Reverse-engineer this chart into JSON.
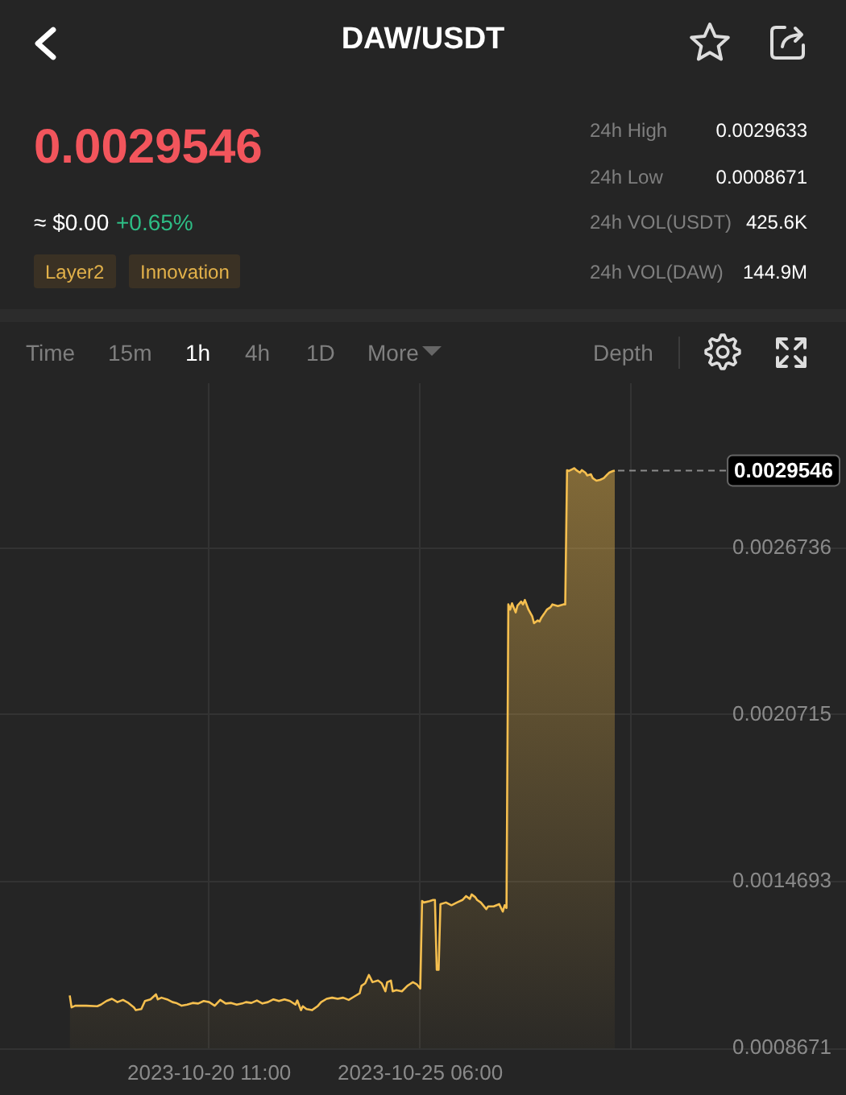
{
  "chart_data": {
    "type": "area",
    "title": "DAW/USDT",
    "x": [
      "2023-10-17T07:00",
      "2023-10-17T08:00",
      "2023-10-17T10:00",
      "2023-10-17T16:00",
      "2023-10-17T22:00",
      "2023-10-18T00:00",
      "2023-10-18T03:00",
      "2023-10-18T06:00",
      "2023-10-18T09:00",
      "2023-10-18T12:00",
      "2023-10-18T15:00",
      "2023-10-18T18:00",
      "2023-10-18T19:00",
      "2023-10-18T22:00",
      "2023-10-19T00:00",
      "2023-10-19T03:00",
      "2023-10-19T06:00",
      "2023-10-19T07:00",
      "2023-10-19T09:00",
      "2023-10-19T12:00",
      "2023-10-19T15:00",
      "2023-10-19T17:00",
      "2023-10-19T20:00",
      "2023-10-19T23:00",
      "2023-10-20T02:00",
      "2023-10-20T05:00",
      "2023-10-20T08:00",
      "2023-10-20T11:00",
      "2023-10-20T14:00",
      "2023-10-20T17:00",
      "2023-10-20T20:00",
      "2023-10-20T23:00",
      "2023-10-21T02:00",
      "2023-10-21T05:00",
      "2023-10-21T07:00",
      "2023-10-21T10:00",
      "2023-10-21T13:00",
      "2023-10-21T16:00",
      "2023-10-21T19:00",
      "2023-10-21T22:00",
      "2023-10-22T01:00",
      "2023-10-22T04:00",
      "2023-10-22T07:00",
      "2023-10-22T10:00",
      "2023-10-22T11:00",
      "2023-10-22T13:00",
      "2023-10-22T14:00",
      "2023-10-22T16:00",
      "2023-10-22T19:00",
      "2023-10-22T22:00",
      "2023-10-23T00:00",
      "2023-10-23T03:00",
      "2023-10-23T06:00",
      "2023-10-23T09:00",
      "2023-10-23T12:00",
      "2023-10-23T15:00",
      "2023-10-23T18:00",
      "2023-10-23T21:00",
      "2023-10-23T22:00",
      "2023-10-24T00:00",
      "2023-10-24T02:00",
      "2023-10-24T04:00",
      "2023-10-24T07:00",
      "2023-10-24T09:00",
      "2023-10-24T11:00",
      "2023-10-24T12:00",
      "2023-10-24T14:00",
      "2023-10-24T15:00",
      "2023-10-24T17:00",
      "2023-10-24T20:00",
      "2023-10-24T23:00",
      "2023-10-25T02:00",
      "2023-10-25T04:00",
      "2023-10-25T06:00",
      "2023-10-25T07:00",
      "2023-10-25T08:00",
      "2023-10-25T11:00",
      "2023-10-25T13:00",
      "2023-10-25T14:00",
      "2023-10-25T15:00",
      "2023-10-25T16:00",
      "2023-10-25T17:00",
      "2023-10-25T20:00",
      "2023-10-25T23:00",
      "2023-10-26T02:00",
      "2023-10-26T05:00",
      "2023-10-26T07:00",
      "2023-10-26T09:00",
      "2023-10-26T10:00",
      "2023-10-26T12:00",
      "2023-10-26T13:00",
      "2023-10-26T15:00",
      "2023-10-26T18:00",
      "2023-10-26T19:00",
      "2023-10-26T22:00",
      "2023-10-27T01:00",
      "2023-10-27T03:00",
      "2023-10-27T04:00",
      "2023-10-27T05:00",
      "2023-10-27T06:00",
      "2023-10-27T07:00",
      "2023-10-27T08:00",
      "2023-10-27T10:00",
      "2023-10-27T11:00",
      "2023-10-27T13:00",
      "2023-10-27T14:00",
      "2023-10-27T15:00",
      "2023-10-27T17:00",
      "2023-10-27T19:00",
      "2023-10-27T20:00",
      "2023-10-27T22:00",
      "2023-10-27T23:00",
      "2023-10-28T00:00",
      "2023-10-28T02:00",
      "2023-10-28T03:00",
      "2023-10-28T05:00",
      "2023-10-28T06:00",
      "2023-10-28T09:00",
      "2023-10-28T12:00",
      "2023-10-28T13:00",
      "2023-10-28T14:00",
      "2023-10-28T15:00",
      "2023-10-28T17:00",
      "2023-10-28T18:00",
      "2023-10-28T19:00",
      "2023-10-28T21:00",
      "2023-10-28T22:00",
      "2023-10-29T00:00",
      "2023-10-29T01:00",
      "2023-10-29T03:00",
      "2023-10-29T04:00",
      "2023-10-29T06:00",
      "2023-10-29T08:00",
      "2023-10-29T10:00",
      "2023-10-29T12:00",
      "2023-10-29T13:00",
      "2023-10-29T15:00",
      "2023-10-29T16:00"
    ],
    "series": [
      {
        "color": "#f5bf4f",
        "values": [
          0.001058,
          0.001015,
          0.001021,
          0.001021,
          0.001019,
          0.001025,
          0.001038,
          0.001046,
          0.001034,
          0.001042,
          0.001031,
          0.001015,
          0.001005,
          0.001009,
          0.001038,
          0.001044,
          0.001062,
          0.001044,
          0.00105,
          0.001044,
          0.001034,
          0.001031,
          0.001021,
          0.001025,
          0.001031,
          0.001029,
          0.001038,
          0.001034,
          0.001021,
          0.001042,
          0.001029,
          0.001031,
          0.001025,
          0.001029,
          0.001034,
          0.001031,
          0.00104,
          0.001029,
          0.001034,
          0.001044,
          0.001038,
          0.001044,
          0.001038,
          0.001025,
          0.00104,
          0.001005,
          0.001019,
          0.001009,
          0.001005,
          0.001019,
          0.001034,
          0.001046,
          0.00105,
          0.001046,
          0.00105,
          0.001042,
          0.001054,
          0.001066,
          0.001093,
          0.001102,
          0.001132,
          0.001106,
          0.001112,
          0.001102,
          0.001073,
          0.001106,
          0.001112,
          0.001073,
          0.001077,
          0.001073,
          0.001093,
          0.001106,
          0.001099,
          0.001083,
          0.001399,
          0.001394,
          0.001399,
          0.001403,
          0.001403,
          0.001151,
          0.001151,
          0.001388,
          0.001394,
          0.001384,
          0.001394,
          0.001403,
          0.001417,
          0.001407,
          0.001423,
          0.001413,
          0.001403,
          0.001394,
          0.00137,
          0.00138,
          0.00138,
          0.001388,
          0.001361,
          0.001384,
          0.001374,
          0.002471,
          0.002452,
          0.002475,
          0.002442,
          0.002467,
          0.002481,
          0.002471,
          0.002487,
          0.002452,
          0.002428,
          0.002403,
          0.002413,
          0.002409,
          0.002423,
          0.002442,
          0.002452,
          0.002461,
          0.002471,
          0.002465,
          0.002471,
          0.002471,
          0.002956,
          0.002953,
          0.00296,
          0.002963,
          0.002956,
          0.002947,
          0.002956,
          0.002947,
          0.002937,
          0.002941,
          0.002927,
          0.002918,
          0.002921,
          0.002927,
          0.002941,
          0.002947,
          0.002953,
          0.0029546
        ]
      }
    ],
    "xlim": [
      "2023-10-15T17:00",
      "2023-11-03T22:00"
    ],
    "xticks": [
      {
        "value": "2023-10-20T11:00",
        "label": "2023-10-20 11:00"
      },
      {
        "value": "2023-10-25T06:00",
        "label": "2023-10-25 06:00"
      },
      {
        "value": "2023-10-30T01:00",
        "label": null
      }
    ],
    "ylim": [
      0.0008671,
      0.00327
    ],
    "yticks": [
      0.0008671,
      0.0014693,
      0.0020715,
      0.0026736
    ],
    "grid": true,
    "marker": "none",
    "ref_lines": [
      {
        "axis": "y",
        "value": 0.0029546,
        "label": "0.0029546",
        "color": "#8c8c8c",
        "line_style": "dashed"
      }
    ],
    "annotations": [
      "0.0029546",
      "≈ $0.00",
      "+0.65%",
      "Layer2",
      "Innovation",
      "24h High",
      "0.0029633",
      "24h Low",
      "0.0008671",
      "24h VOL(USDT)",
      "425.6K",
      "24h VOL(DAW)",
      "144.9M",
      "Time",
      "15m",
      "1h",
      "4h",
      "1D",
      "More",
      "Depth"
    ]
  }
}
